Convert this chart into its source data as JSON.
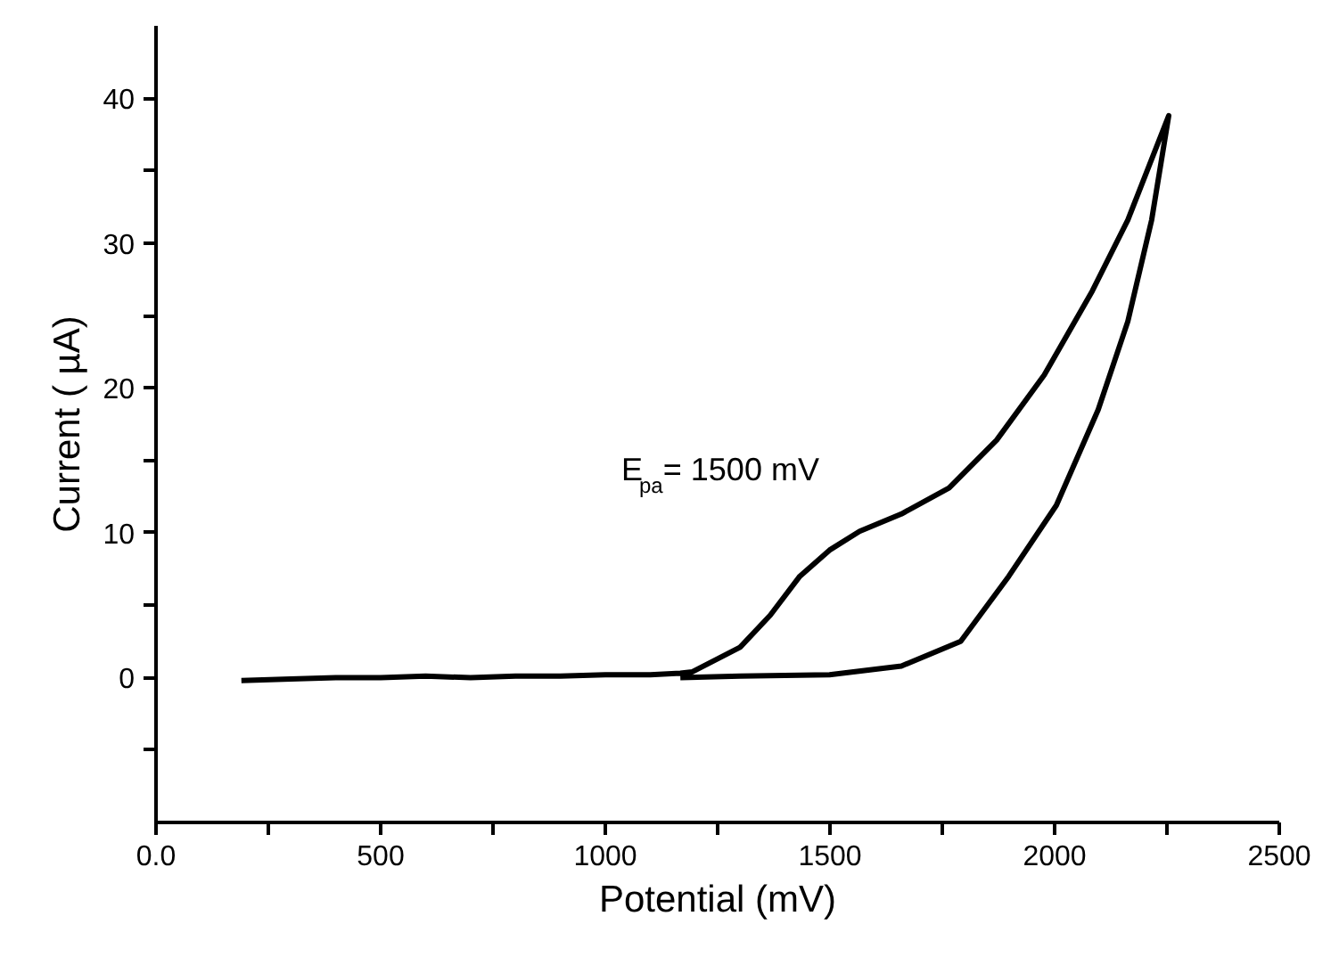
{
  "chart_data": {
    "type": "line",
    "xlabel": "Potential (mV)",
    "ylabel": "Current ( µA)",
    "annotations": [
      "E$_{pa}$= 1500 mV"
    ],
    "series": [
      {
        "color": "#000000",
        "x": [
          190,
          300,
          400,
          500,
          600,
          700,
          800,
          900,
          1000,
          1100,
          1167,
          1194,
          1300,
          1367,
          1433,
          1499,
          1566,
          1659,
          1765,
          1871,
          1977,
          2084,
          2163,
          2254,
          2216,
          2163,
          2097,
          2004,
          1898,
          1791,
          1659,
          1499,
          1300,
          1167
        ],
        "values": [
          -0.2,
          -0.1,
          0,
          0,
          0.1,
          0,
          0.1,
          0.1,
          0.2,
          0.2,
          0.3,
          0.4,
          2.1,
          4.3,
          7.0,
          8.8,
          10.1,
          11.3,
          13.1,
          16.4,
          20.9,
          26.7,
          31.6,
          38.8,
          31.6,
          24.6,
          18.5,
          11.9,
          7.0,
          2.5,
          0.8,
          0.2,
          0.1,
          0
        ]
      }
    ],
    "xlim": [
      0,
      2500
    ],
    "ylim": [
      -10,
      45
    ],
    "xticks": [
      {
        "value": 0,
        "label": "0.0"
      },
      {
        "value": 250,
        "label": null
      },
      500,
      {
        "value": 750,
        "label": null
      },
      1000,
      {
        "value": 1250,
        "label": null
      },
      1500,
      {
        "value": 1750,
        "label": null
      },
      2000,
      {
        "value": 2250,
        "label": null
      },
      2500
    ],
    "yticks": [
      {
        "value": -5,
        "label": null
      },
      0,
      {
        "value": 5,
        "label": null
      },
      10,
      {
        "value": 15,
        "label": null
      },
      20,
      {
        "value": 25,
        "label": null
      },
      30,
      {
        "value": 35,
        "label": null
      },
      40
    ],
    "grid": false,
    "marker": "none",
    "line_style": "solid"
  }
}
